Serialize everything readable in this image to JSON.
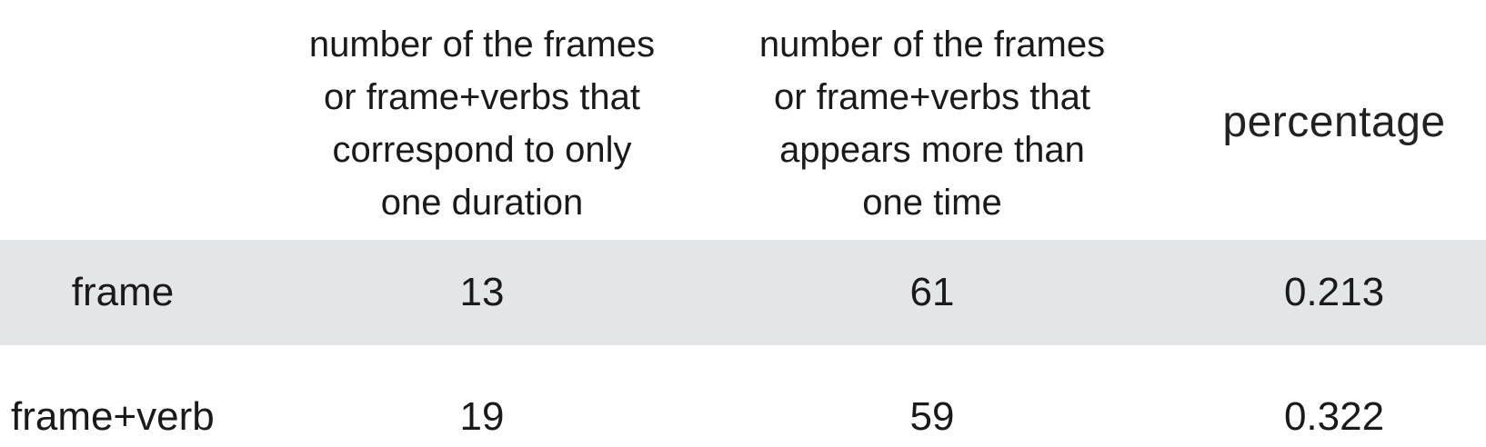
{
  "chart_data": {
    "type": "table",
    "columns": [
      "",
      "number of the frames\nor frame+verbs that\ncorrespond to only\none duration",
      "number of the frames\nor frame+verbs that\nappears more than\none time",
      "percentage"
    ],
    "rows": [
      {
        "label": "frame",
        "values": [
          "13",
          "61",
          "0.213"
        ]
      },
      {
        "label": "frame+verb",
        "values": [
          "19",
          "59",
          "0.322"
        ]
      }
    ],
    "colors": {
      "striped_row": "#e4e5e8",
      "background": "#ffffff",
      "text": "#1a1a1a"
    }
  }
}
